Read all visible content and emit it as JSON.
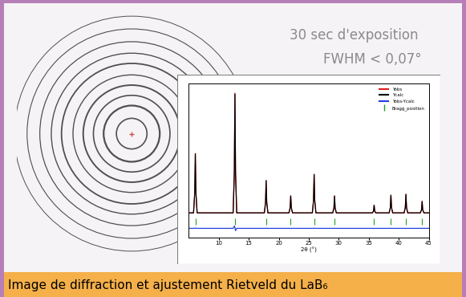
{
  "header": {
    "lines": [
      "30 sec d'exposition",
      "FWHM < 0,07°"
    ]
  },
  "caption": "Image de diffraction et ajustement Rietveld du LaB₆",
  "chart_data": {
    "type": "line",
    "x_label": "2θ (°)",
    "xlim": [
      5,
      45
    ],
    "xticks": [
      10,
      15,
      20,
      25,
      30,
      35,
      40,
      45
    ],
    "ylim": [
      -3000,
      17000
    ],
    "tick_labels": "x",
    "grid": false,
    "legend": "upper right",
    "x": [
      5,
      5.8,
      6.0,
      6.1,
      6.2,
      6.4,
      12.4,
      12.6,
      12.7,
      12.8,
      13.0,
      17.6,
      17.8,
      17.9,
      18.0,
      18.2,
      21.7,
      21.9,
      22.0,
      22.1,
      22.3,
      25.6,
      25.8,
      25.9,
      26.0,
      26.2,
      29.0,
      29.2,
      29.3,
      29.4,
      29.6,
      35.6,
      35.8,
      35.9,
      36.0,
      36.2,
      38.4,
      38.6,
      38.7,
      38.8,
      39.0,
      40.9,
      41.1,
      41.2,
      41.3,
      41.5,
      43.6,
      43.8,
      43.9,
      44.0,
      44.2,
      45
    ],
    "series": [
      {
        "name": "Yobs",
        "color": "#e02020",
        "line_style": "solid",
        "values": [
          200,
          200,
          2765,
          7900,
          2765,
          200,
          200,
          5495,
          15700,
          5495,
          200,
          200,
          1540,
          4400,
          1540,
          200,
          200,
          840,
          2400,
          840,
          200,
          200,
          1820,
          5200,
          1820,
          200,
          200,
          840,
          2400,
          840,
          200,
          200,
          420,
          1200,
          420,
          200,
          200,
          875,
          2500,
          875,
          200,
          200,
          910,
          2600,
          910,
          200,
          200,
          595,
          1700,
          595,
          200,
          200
        ]
      },
      {
        "name": "Ycalc",
        "color": "#000000",
        "line_style": "solid",
        "values": [
          200,
          200,
          2765,
          7850,
          2765,
          200,
          200,
          5495,
          15600,
          5495,
          200,
          200,
          1540,
          4380,
          1540,
          200,
          200,
          840,
          2410,
          840,
          200,
          200,
          1820,
          5180,
          1820,
          200,
          200,
          840,
          2390,
          840,
          200,
          200,
          420,
          1210,
          420,
          200,
          200,
          875,
          2490,
          875,
          200,
          200,
          910,
          2610,
          910,
          200,
          200,
          595,
          1690,
          595,
          200,
          200
        ]
      },
      {
        "name": "Yobs-Ycalc",
        "color": "#2040e0",
        "line_style": "solid",
        "values": [
          -1800,
          -1800,
          -1800,
          -1750,
          -1800,
          -1800,
          -1800,
          -1500,
          -1700,
          -2100,
          -1800,
          -1800,
          -1800,
          -1780,
          -1800,
          -1800,
          -1800,
          -1800,
          -1810,
          -1800,
          -1800,
          -1800,
          -1800,
          -1780,
          -1800,
          -1800,
          -1800,
          -1800,
          -1790,
          -1800,
          -1800,
          -1800,
          -1800,
          -1810,
          -1800,
          -1800,
          -1800,
          -1800,
          -1790,
          -1800,
          -1800,
          -1800,
          -1800,
          -1810,
          -1800,
          -1800,
          -1800,
          -1800,
          -1790,
          -1800,
          -1800,
          -1800
        ]
      },
      {
        "name": "Bragg_position",
        "color": "#20a020",
        "type": "scatter",
        "marker": "|",
        "x": [
          6.1,
          12.7,
          17.9,
          22.0,
          25.9,
          29.3,
          35.9,
          38.7,
          41.2,
          43.9
        ],
        "values": [
          -900,
          -900,
          -900,
          -900,
          -900,
          -900,
          -900,
          -900,
          -900,
          -900
        ]
      }
    ]
  }
}
